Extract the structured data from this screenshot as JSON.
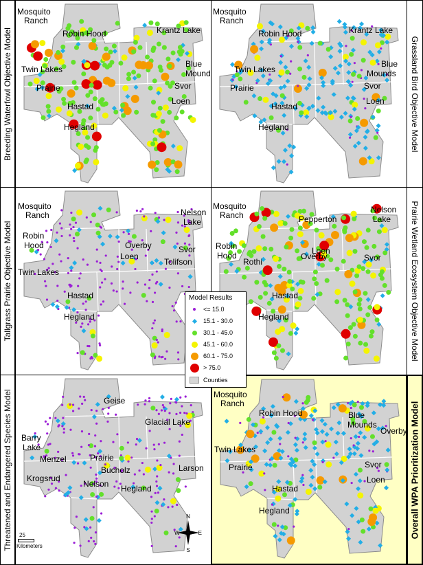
{
  "colors": {
    "county_fill": "#d2d2d2",
    "county_stroke": "#ffffff",
    "bin_le15": "#9b1fd6",
    "bin_15_30": "#22aee6",
    "bin_30_45": "#63e02b",
    "bin_45_60": "#f4f400",
    "bin_60_75": "#f59a00",
    "bin_gt75": "#e00000",
    "highlight": "#ffffc4"
  },
  "legend": {
    "title": "Model Results",
    "items": [
      {
        "label": "<= 15.0",
        "symbol": "small-dot",
        "color": "#9b1fd6"
      },
      {
        "label": "15.1 - 30.0",
        "symbol": "diamond",
        "color": "#22aee6"
      },
      {
        "label": "30.1 - 45.0",
        "symbol": "dot",
        "color": "#63e02b"
      },
      {
        "label": "45.1 - 60.0",
        "symbol": "dot",
        "color": "#f4f400"
      },
      {
        "label": "60.1 - 75.0",
        "symbol": "dot",
        "color": "#f59a00"
      },
      {
        "label": "> 75.0",
        "symbol": "dot",
        "color": "#e00000"
      },
      {
        "label": "Counties",
        "symbol": "swatch",
        "color": "#d2d2d2"
      }
    ]
  },
  "scale_bar": {
    "value": "25",
    "unit": "Kilometers"
  },
  "north_arrow": {
    "n": "N",
    "s": "S",
    "e": "E",
    "w": "W"
  },
  "panels": [
    {
      "id": "breeding-waterfowl",
      "title": "Breeding Waterfowl Objective Model",
      "dominant": "#63e02b",
      "labels": [
        "Mosquito Ranch",
        "Robin Hood",
        "Krantz Lake",
        "Twin Lakes",
        "Blue Mounds",
        "Prairie",
        "Svor",
        "Loen",
        "Hastad",
        "Hegland"
      ]
    },
    {
      "id": "grassland-bird",
      "title": "Grassland Bird Objective Model",
      "dominant": "#22aee6",
      "labels": [
        "Mosquito Ranch",
        "Robin Hood",
        "Krantz Lake",
        "Twin Lakes",
        "Blue Mounds",
        "Prairie",
        "Svor",
        "Loen",
        "Hastad",
        "Hegland"
      ]
    },
    {
      "id": "tallgrass-prairie",
      "title": "Tallgrass Prairie Objective Model",
      "dominant": "#9b1fd6",
      "labels": [
        "Mosquito Ranch",
        "Nelson Lake",
        "Overby",
        "Robin Hood",
        "Loen",
        "Twin Lakes",
        "Svor",
        "Tolifson",
        "Hastad",
        "Hegland"
      ]
    },
    {
      "id": "prairie-wetland",
      "title": "Prairie Wetland Ecosystem Objective Model",
      "dominant": "#63e02b",
      "labels": [
        "Mosquito Ranch",
        "Pepperton",
        "Nelson Lake",
        "Robin Hood",
        "Overby",
        "Rothi",
        "Loen",
        "Svor",
        "Hastad",
        "Hegland"
      ]
    },
    {
      "id": "threatened-endangered",
      "title": "Threatened and Endangered Species Model",
      "dominant": "#9b1fd6",
      "labels": [
        "Geise",
        "Glacial Lake",
        "Barry Lake",
        "Menzel",
        "Prairie",
        "Bucholz",
        "Larson",
        "Krogsrud",
        "Nelson",
        "Hegland"
      ]
    },
    {
      "id": "overall",
      "title": "Overall WPA Prioritization Model",
      "dominant": "#22aee6",
      "labels": [
        "Mosquito Ranch",
        "Robin Hood",
        "Blue Mounds",
        "Overby",
        "Twin Lakes",
        "Prairie",
        "Svor",
        "Loen",
        "Hastad",
        "Hegland"
      ]
    }
  ]
}
